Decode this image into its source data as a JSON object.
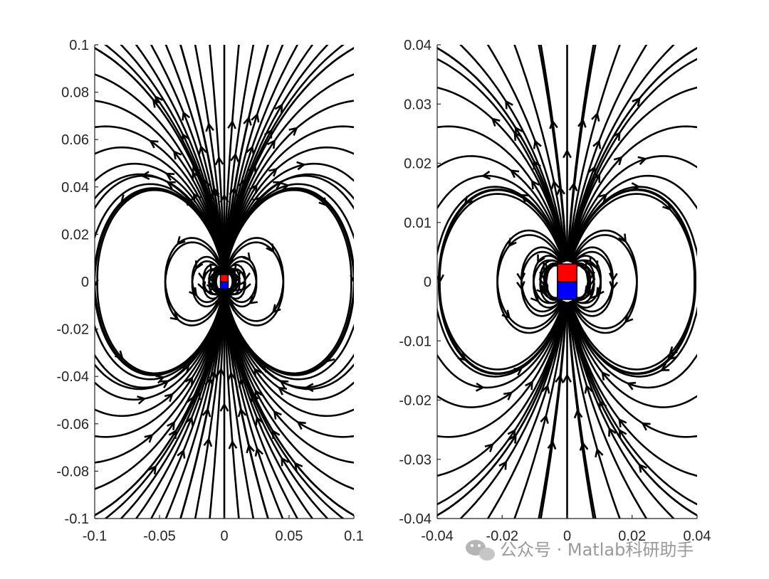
{
  "watermark": {
    "text": "公众号 · Matlab科研助手",
    "icon": "wechat-icon"
  },
  "colors": {
    "field_lines": "#000000",
    "magnet_north": "#ff0000",
    "magnet_south": "#0000ff",
    "axis": "#262626"
  },
  "chart_data": [
    {
      "type": "streamline",
      "title": "",
      "xlabel": "",
      "ylabel": "",
      "xlim": [
        -0.1,
        0.1
      ],
      "ylim": [
        -0.1,
        0.1
      ],
      "x_ticks": [
        -0.1,
        -0.05,
        0,
        0.05,
        0.1
      ],
      "x_tick_labels": [
        "-0.1",
        "-0.05",
        "0",
        "0.05",
        "0.1"
      ],
      "y_ticks": [
        0.1,
        0.08,
        0.06,
        0.04,
        0.02,
        0,
        -0.02,
        -0.04,
        -0.06,
        -0.08,
        -0.1
      ],
      "y_tick_labels": [
        "0.1",
        "0.08",
        "0.06",
        "0.04",
        "0.02",
        "0",
        "-0.02",
        "-0.04",
        "-0.06",
        "-0.08",
        "-0.1"
      ],
      "grid": false,
      "magnet": {
        "x_range": [
          -0.003,
          0.003
        ],
        "north_y_range": [
          0,
          0.003
        ],
        "south_y_range": [
          -0.003,
          0
        ]
      }
    },
    {
      "type": "streamline",
      "title": "",
      "xlabel": "",
      "ylabel": "",
      "xlim": [
        -0.04,
        0.04
      ],
      "ylim": [
        -0.04,
        0.04
      ],
      "x_ticks": [
        -0.04,
        -0.02,
        0,
        0.02,
        0.04
      ],
      "x_tick_labels": [
        "-0.04",
        "-0.02",
        "0",
        "0.02",
        "0.04"
      ],
      "y_ticks": [
        0.04,
        0.03,
        0.02,
        0.01,
        0,
        -0.01,
        -0.02,
        -0.03,
        -0.04
      ],
      "y_tick_labels": [
        "0.04",
        "0.03",
        "0.02",
        "0.01",
        "0",
        "-0.01",
        "-0.02",
        "-0.03",
        "-0.04"
      ],
      "grid": false,
      "magnet": {
        "x_range": [
          -0.003,
          0.003
        ],
        "north_y_range": [
          0,
          0.003
        ],
        "south_y_range": [
          -0.003,
          0
        ]
      }
    }
  ]
}
